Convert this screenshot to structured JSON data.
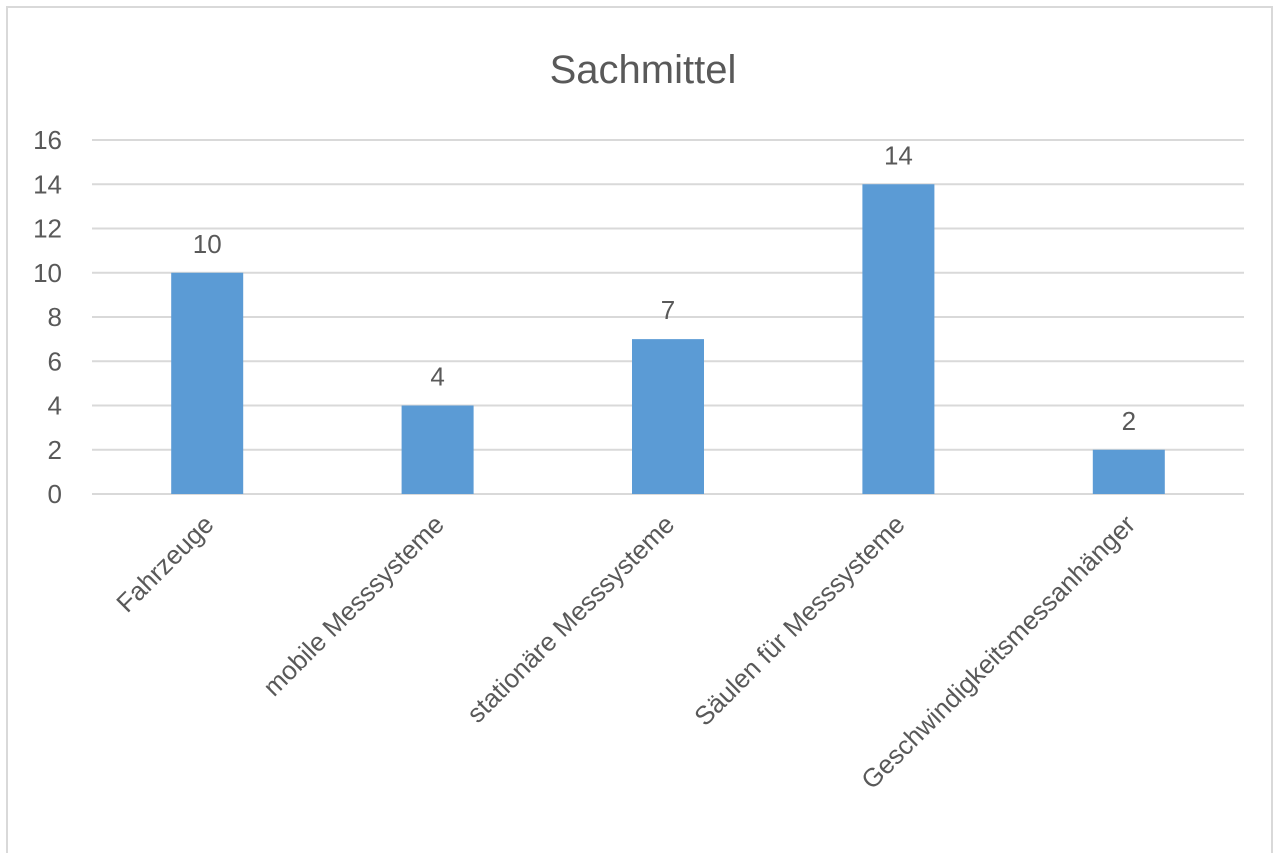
{
  "chart_data": {
    "type": "bar",
    "title": "Sachmittel",
    "categories": [
      "Fahrzeuge",
      "mobile Messsysteme",
      "stationäre Messsysteme",
      "Säulen für Messsysteme",
      "Geschwindigkeitsmessanhänger"
    ],
    "values": [
      10,
      4,
      7,
      14,
      2
    ],
    "xlabel": "",
    "ylabel": "",
    "ylim": [
      0,
      16
    ],
    "yticks": [
      "0",
      "2",
      "4",
      "6",
      "8",
      "10",
      "12",
      "14",
      "16"
    ],
    "grid": true,
    "legend": "none",
    "data_labels": true,
    "colors": {
      "bar": "#5b9bd5",
      "grid": "#d9d9d9",
      "text": "#595959"
    }
  }
}
